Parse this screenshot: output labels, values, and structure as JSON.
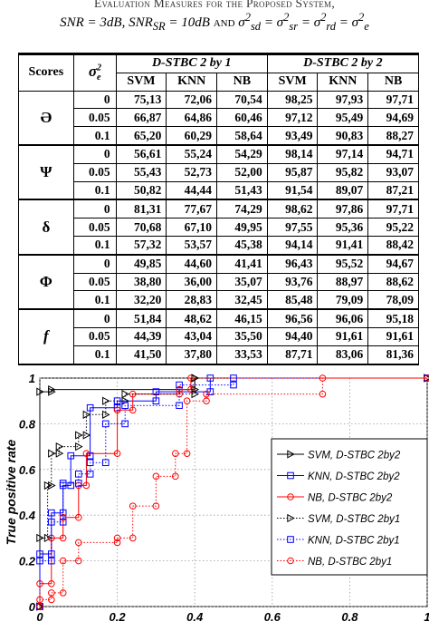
{
  "caption": {
    "line1": "Evaluation Measures for the Proposed System,",
    "line2": "SNR = 3dB, SNR_SR = 10dB and σ²sd = σ²sr = σ²rd = σ²e"
  },
  "table": {
    "header": {
      "scores": "Scores",
      "noise_symbol": "σ",
      "noise_sub": "e",
      "noise_sup": "2",
      "group1": "D-STBC 2 by 1",
      "group2": "D-STBC 2 by 2",
      "classifiers": [
        "SVM",
        "KNN",
        "NB",
        "SVM",
        "KNN",
        "NB"
      ]
    },
    "groups": [
      {
        "metric": "Ə",
        "rows": [
          {
            "noise": "0",
            "values": [
              "75,13",
              "72,06",
              "70,54",
              "98,25",
              "97,93",
              "97,71"
            ]
          },
          {
            "noise": "0.05",
            "values": [
              "66,87",
              "64,86",
              "60,46",
              "97,12",
              "95,49",
              "94,69"
            ]
          },
          {
            "noise": "0.1",
            "values": [
              "65,20",
              "60,29",
              "58,64",
              "93,49",
              "90,83",
              "88,27"
            ]
          }
        ]
      },
      {
        "metric": "Ψ",
        "rows": [
          {
            "noise": "0",
            "values": [
              "56,61",
              "55,24",
              "54,29",
              "98,14",
              "97,14",
              "94,71"
            ]
          },
          {
            "noise": "0.05",
            "values": [
              "55,43",
              "52,73",
              "52,00",
              "95,87",
              "95,82",
              "93,07"
            ]
          },
          {
            "noise": "0.1",
            "values": [
              "50,82",
              "44,44",
              "51,43",
              "91,54",
              "89,07",
              "87,21"
            ]
          }
        ]
      },
      {
        "metric": "δ",
        "rows": [
          {
            "noise": "0",
            "values": [
              "81,31",
              "77,67",
              "74,29",
              "98,62",
              "97,86",
              "97,71"
            ]
          },
          {
            "noise": "0.05",
            "values": [
              "70,68",
              "67,10",
              "49,95",
              "97,55",
              "95,36",
              "95,22"
            ]
          },
          {
            "noise": "0.1",
            "values": [
              "57,32",
              "53,57",
              "45,38",
              "94,14",
              "91,41",
              "88,42"
            ]
          }
        ]
      },
      {
        "metric": "Φ",
        "rows": [
          {
            "noise": "0",
            "values": [
              "49,85",
              "44,60",
              "41,41",
              "96,43",
              "95,52",
              "94,67"
            ]
          },
          {
            "noise": "0.05",
            "values": [
              "38,80",
              "36,00",
              "35,07",
              "93,76",
              "88,97",
              "88,62"
            ]
          },
          {
            "noise": "0.1",
            "values": [
              "32,20",
              "28,83",
              "32,45",
              "85,48",
              "79,09",
              "78,09"
            ]
          }
        ]
      },
      {
        "metric": "f",
        "rows": [
          {
            "noise": "0",
            "values": [
              "51,84",
              "48,62",
              "46,15",
              "96,56",
              "96,06",
              "95,18"
            ]
          },
          {
            "noise": "0.05",
            "values": [
              "44,39",
              "43,04",
              "35,50",
              "94,40",
              "91,61",
              "91,61"
            ]
          },
          {
            "noise": "0.1",
            "values": [
              "41,50",
              "37,80",
              "33,53",
              "87,71",
              "83,06",
              "81,36"
            ]
          }
        ]
      }
    ]
  },
  "chart_data": {
    "type": "line",
    "xlabel": "",
    "ylabel": "True positive rate",
    "xlim": [
      0,
      1
    ],
    "ylim": [
      0,
      1
    ],
    "x_ticks": [
      "0",
      "0.2",
      "0.4",
      "0.6",
      "0.8",
      "1"
    ],
    "y_ticks": [
      "0",
      "0.2",
      "0.4",
      "0.6",
      "0.8",
      "1"
    ],
    "grid": true,
    "legend_position": "right",
    "series": [
      {
        "name": "SVM, D-STBC 2by2",
        "color": "#000000",
        "style": "solid",
        "marker": "triangle-right",
        "points": [
          [
            0,
            0
          ],
          [
            0,
            0.94
          ],
          [
            0.03,
            0.94
          ],
          [
            0.03,
            0.95
          ],
          [
            0.4,
            0.95
          ],
          [
            0.4,
            1
          ],
          [
            1,
            1
          ]
        ]
      },
      {
        "name": "KNN, D-STBC 2by2",
        "color": "#0000ff",
        "style": "solid",
        "marker": "square",
        "points": [
          [
            0,
            0
          ],
          [
            0,
            0.23
          ],
          [
            0.03,
            0.23
          ],
          [
            0.03,
            0.41
          ],
          [
            0.06,
            0.41
          ],
          [
            0.06,
            0.53
          ],
          [
            0.08,
            0.53
          ],
          [
            0.08,
            0.66
          ],
          [
            0.13,
            0.66
          ],
          [
            0.13,
            0.87
          ],
          [
            0.2,
            0.87
          ],
          [
            0.2,
            0.9
          ],
          [
            0.3,
            0.9
          ],
          [
            0.3,
            0.94
          ],
          [
            0.44,
            0.94
          ],
          [
            0.44,
            1
          ],
          [
            1,
            1
          ]
        ]
      },
      {
        "name": "NB,   D-STBC 2by2",
        "color": "#ff0000",
        "style": "solid",
        "marker": "circle",
        "points": [
          [
            0,
            0
          ],
          [
            0,
            0.1
          ],
          [
            0.03,
            0.1
          ],
          [
            0.03,
            0.3
          ],
          [
            0.06,
            0.3
          ],
          [
            0.06,
            0.39
          ],
          [
            0.1,
            0.39
          ],
          [
            0.1,
            0.53
          ],
          [
            0.12,
            0.53
          ],
          [
            0.12,
            0.67
          ],
          [
            0.2,
            0.67
          ],
          [
            0.2,
            0.86
          ],
          [
            0.24,
            0.86
          ],
          [
            0.24,
            0.93
          ],
          [
            0.36,
            0.93
          ],
          [
            0.36,
            0.95
          ],
          [
            0.39,
            0.95
          ],
          [
            0.39,
            1
          ],
          [
            1,
            1
          ]
        ]
      },
      {
        "name": "SVM, D-STBC 2by1",
        "color": "#000000",
        "style": "dotted",
        "marker": "triangle-right",
        "points": [
          [
            0,
            0
          ],
          [
            0,
            0.3
          ],
          [
            0.02,
            0.3
          ],
          [
            0.02,
            0.53
          ],
          [
            0.03,
            0.53
          ],
          [
            0.03,
            0.67
          ],
          [
            0.05,
            0.67
          ],
          [
            0.05,
            0.7
          ],
          [
            0.1,
            0.7
          ],
          [
            0.1,
            0.75
          ],
          [
            0.12,
            0.75
          ],
          [
            0.12,
            0.84
          ],
          [
            0.17,
            0.84
          ],
          [
            0.17,
            0.9
          ],
          [
            0.22,
            0.9
          ],
          [
            0.22,
            0.93
          ],
          [
            0.4,
            0.93
          ],
          [
            0.4,
            1
          ],
          [
            1,
            1
          ]
        ]
      },
      {
        "name": "KNN, D-STBC 2by1",
        "color": "#0000ff",
        "style": "dotted",
        "marker": "square",
        "points": [
          [
            0,
            0
          ],
          [
            0,
            0.2
          ],
          [
            0.03,
            0.2
          ],
          [
            0.03,
            0.37
          ],
          [
            0.06,
            0.37
          ],
          [
            0.06,
            0.54
          ],
          [
            0.1,
            0.54
          ],
          [
            0.1,
            0.58
          ],
          [
            0.13,
            0.58
          ],
          [
            0.13,
            0.63
          ],
          [
            0.17,
            0.63
          ],
          [
            0.17,
            0.8
          ],
          [
            0.22,
            0.8
          ],
          [
            0.22,
            0.88
          ],
          [
            0.36,
            0.88
          ],
          [
            0.36,
            0.97
          ],
          [
            0.5,
            0.97
          ],
          [
            0.5,
            1
          ],
          [
            1,
            1
          ]
        ]
      },
      {
        "name": "NB,   D-STBC 2by1",
        "color": "#ff0000",
        "style": "dotted",
        "marker": "circle",
        "points": [
          [
            0,
            0
          ],
          [
            0,
            0.03
          ],
          [
            0.03,
            0.03
          ],
          [
            0.03,
            0.06
          ],
          [
            0.06,
            0.06
          ],
          [
            0.06,
            0.2
          ],
          [
            0.1,
            0.2
          ],
          [
            0.1,
            0.28
          ],
          [
            0.2,
            0.28
          ],
          [
            0.2,
            0.3
          ],
          [
            0.24,
            0.3
          ],
          [
            0.24,
            0.44
          ],
          [
            0.3,
            0.44
          ],
          [
            0.3,
            0.57
          ],
          [
            0.35,
            0.57
          ],
          [
            0.35,
            0.67
          ],
          [
            0.38,
            0.67
          ],
          [
            0.38,
            0.9
          ],
          [
            0.43,
            0.9
          ],
          [
            0.43,
            0.93
          ],
          [
            0.73,
            0.93
          ],
          [
            0.73,
            1
          ],
          [
            1,
            1
          ]
        ]
      }
    ]
  }
}
